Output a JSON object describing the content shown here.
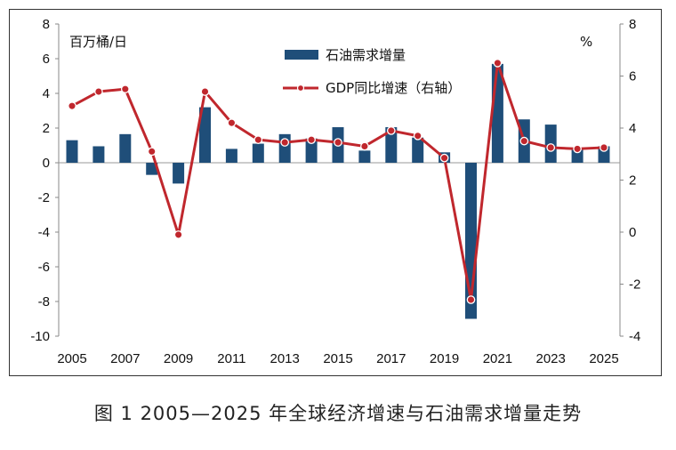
{
  "caption": "图 1  2005—2025 年全球经济增速与石油需求增量走势",
  "chart_data": {
    "type": "bar+line",
    "x": [
      2005,
      2006,
      2007,
      2008,
      2009,
      2010,
      2011,
      2012,
      2013,
      2014,
      2015,
      2016,
      2017,
      2018,
      2019,
      2020,
      2021,
      2022,
      2023,
      2024,
      2025
    ],
    "x_tick_labels": [
      "2005",
      "2007",
      "2009",
      "2011",
      "2013",
      "2015",
      "2017",
      "2019",
      "2021",
      "2023",
      "2025"
    ],
    "y_left": {
      "unit": "百万桶/日",
      "ylim": [
        -10,
        8
      ],
      "ticks": [
        "8",
        "6",
        "4",
        "2",
        "0",
        "-2",
        "-4",
        "-6",
        "-8",
        "-10"
      ]
    },
    "y_right": {
      "unit": "%",
      "ylim": [
        -4,
        8
      ],
      "ticks": [
        "8",
        "6",
        "4",
        "2",
        "0",
        "-2",
        "-4"
      ]
    },
    "series": [
      {
        "name": "石油需求增量",
        "type": "bar",
        "axis": "left",
        "color": "#1f4e79",
        "values": [
          1.3,
          0.95,
          1.65,
          -0.7,
          -1.2,
          3.2,
          0.8,
          1.1,
          1.65,
          1.4,
          2.05,
          0.7,
          2.05,
          1.45,
          0.6,
          -9.0,
          5.7,
          2.5,
          2.2,
          0.85,
          0.95
        ]
      },
      {
        "name": "GDP同比增速（右轴）",
        "type": "line",
        "axis": "right",
        "color": "#c0272d",
        "values": [
          4.85,
          5.4,
          5.5,
          3.1,
          -0.1,
          5.4,
          4.2,
          3.55,
          3.45,
          3.55,
          3.45,
          3.3,
          3.9,
          3.7,
          2.85,
          -2.6,
          6.5,
          3.5,
          3.25,
          3.2,
          3.25
        ]
      }
    ],
    "legend_position": "top-center",
    "grid": false
  }
}
